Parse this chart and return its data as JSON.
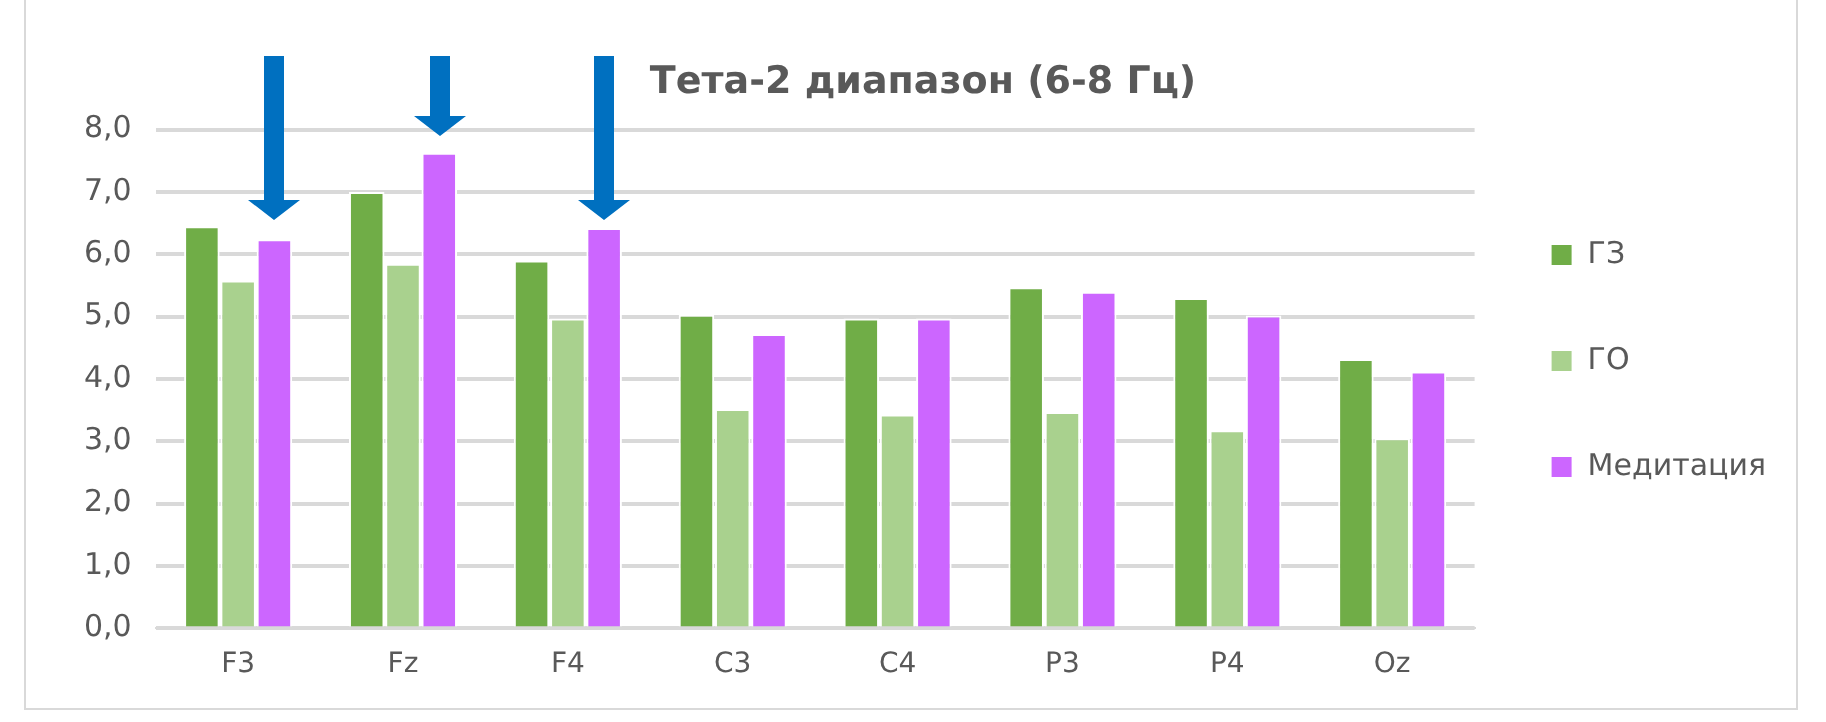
{
  "chart_data": {
    "type": "bar",
    "title": "Тета-2 диапазон (6-8 Гц)",
    "categories": [
      "F3",
      "Fz",
      "F4",
      "C3",
      "C4",
      "P3",
      "P4",
      "Oz"
    ],
    "series": [
      {
        "name": "ГЗ",
        "color": "#70ad47",
        "values": [
          6.45,
          7.0,
          5.9,
          5.03,
          4.97,
          5.47,
          5.3,
          4.32
        ]
      },
      {
        "name": "ГО",
        "color": "#a9d18e",
        "values": [
          5.58,
          5.85,
          4.97,
          3.52,
          3.43,
          3.47,
          3.18,
          3.05
        ]
      },
      {
        "name": "Медитация",
        "color": "#cc66ff",
        "values": [
          6.24,
          7.63,
          6.42,
          4.72,
          4.97,
          5.4,
          5.02,
          4.12
        ]
      }
    ],
    "ylim": [
      0,
      8
    ],
    "yticks": [
      {
        "value": 0,
        "label": "0,0"
      },
      {
        "value": 1,
        "label": "1,0"
      },
      {
        "value": 2,
        "label": "2,0"
      },
      {
        "value": 3,
        "label": "3,0"
      },
      {
        "value": 4,
        "label": "4,0"
      },
      {
        "value": 5,
        "label": "5,0"
      },
      {
        "value": 6,
        "label": "6,0"
      },
      {
        "value": 7,
        "label": "7,0"
      },
      {
        "value": 8,
        "label": "8,0"
      }
    ],
    "grid": "y",
    "legend": "right"
  }
}
